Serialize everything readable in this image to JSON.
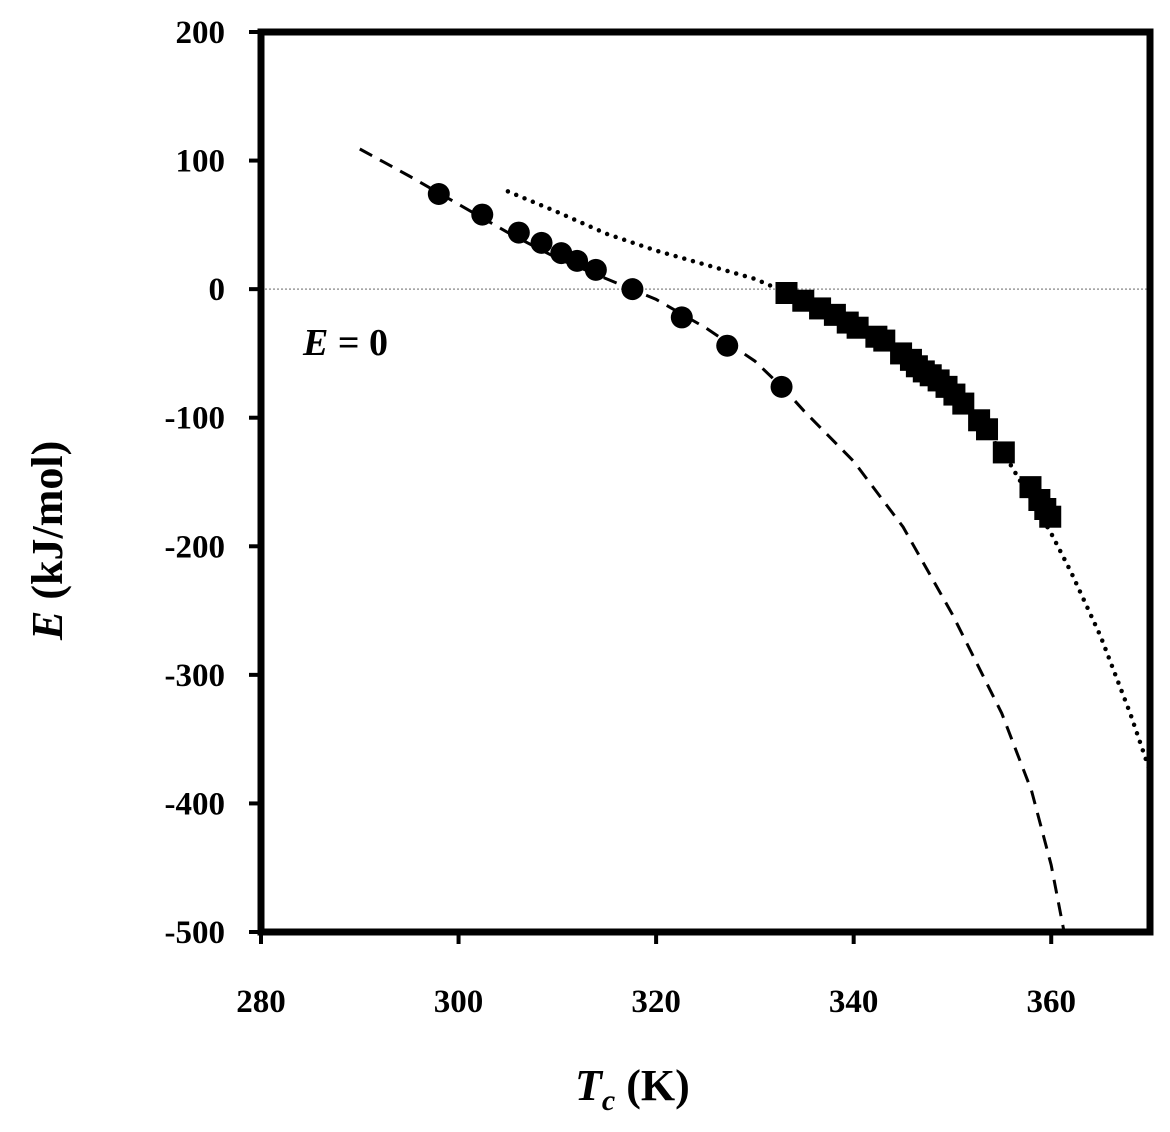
{
  "chart_data": {
    "type": "scatter",
    "title": "",
    "xlabel": {
      "symbol": "T",
      "subscript": "c",
      "unit": " (K)"
    },
    "ylabel": {
      "symbol": "E",
      "unit": " (kJ/mol)"
    },
    "xlim": [
      280,
      370
    ],
    "ylim": [
      -500,
      200
    ],
    "x_ticks": [
      280,
      300,
      320,
      340,
      360
    ],
    "y_ticks": [
      200,
      100,
      0,
      -100,
      -200,
      -300,
      -400,
      -500
    ],
    "x_tick_labels": [
      "280",
      "300",
      "320",
      "340",
      "360"
    ],
    "y_tick_labels": [
      "200",
      "100",
      "0",
      "-100",
      "-200",
      "-300",
      "-400",
      "-500"
    ],
    "grid": false,
    "legend": "none",
    "reference_line": {
      "y": 0,
      "style": "dotted",
      "color": "#9a9a9a"
    },
    "annotation": {
      "symbol": "E",
      "text": " = 0"
    },
    "series": [
      {
        "marker": "circle",
        "color": "#000000",
        "points": [
          [
            298,
            74
          ],
          [
            302.4,
            58
          ],
          [
            306.1,
            44
          ],
          [
            308.4,
            36
          ],
          [
            310.4,
            28
          ],
          [
            312,
            22
          ],
          [
            313.9,
            15
          ],
          [
            317.6,
            0
          ],
          [
            322.6,
            -22
          ],
          [
            327.2,
            -44
          ],
          [
            332.7,
            -76
          ]
        ]
      },
      {
        "marker": "square",
        "color": "#000000",
        "points": [
          [
            333.2,
            -3
          ],
          [
            334.9,
            -9
          ],
          [
            336.6,
            -15
          ],
          [
            338.1,
            -20
          ],
          [
            339.4,
            -26
          ],
          [
            340.4,
            -30
          ],
          [
            342.3,
            -37
          ],
          [
            343.1,
            -40
          ],
          [
            344.8,
            -50
          ],
          [
            345.8,
            -55
          ],
          [
            346.4,
            -60
          ],
          [
            347.1,
            -64
          ],
          [
            347.8,
            -67
          ],
          [
            348.6,
            -71
          ],
          [
            349.4,
            -76
          ],
          [
            350.2,
            -82
          ],
          [
            351.1,
            -89
          ],
          [
            352.7,
            -102
          ],
          [
            353.5,
            -109
          ],
          [
            355.2,
            -127
          ],
          [
            357.9,
            -154
          ],
          [
            358.8,
            -164
          ],
          [
            359.4,
            -171
          ],
          [
            359.9,
            -177
          ]
        ]
      }
    ],
    "fit_curves": [
      {
        "style": "dashed",
        "color": "#000000",
        "points": [
          [
            290,
            109
          ],
          [
            295,
            88
          ],
          [
            300,
            66
          ],
          [
            305,
            44
          ],
          [
            310,
            24
          ],
          [
            315,
            8
          ],
          [
            320,
            -8
          ],
          [
            325,
            -30
          ],
          [
            330,
            -56
          ],
          [
            333,
            -78
          ],
          [
            335,
            -95
          ],
          [
            340,
            -134
          ],
          [
            345,
            -185
          ],
          [
            350,
            -253
          ],
          [
            355,
            -330
          ],
          [
            358,
            -390
          ],
          [
            360,
            -448
          ],
          [
            361.3,
            -500
          ]
        ]
      },
      {
        "style": "dotted",
        "color": "#000000",
        "points": [
          [
            305,
            76
          ],
          [
            310,
            60
          ],
          [
            315,
            43
          ],
          [
            320,
            30
          ],
          [
            325,
            19
          ],
          [
            330,
            8
          ],
          [
            333,
            -2
          ],
          [
            335,
            -7
          ],
          [
            340,
            -24
          ],
          [
            345,
            -52
          ],
          [
            350,
            -84
          ],
          [
            355,
            -125
          ],
          [
            360,
            -190
          ],
          [
            362,
            -220
          ],
          [
            365,
            -270
          ],
          [
            368,
            -330
          ],
          [
            370,
            -375
          ]
        ]
      }
    ]
  }
}
